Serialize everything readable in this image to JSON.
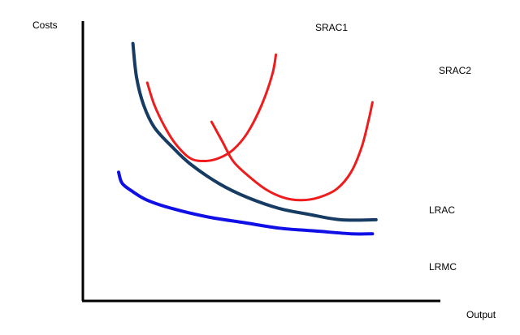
{
  "chart_data": {
    "type": "line",
    "ylabel": "Costs",
    "xlabel": "Output",
    "grid": false,
    "series": [
      {
        "name": "SRAC1",
        "color": "#ee1c1c",
        "points": [
          [
            0.18,
            0.78
          ],
          [
            0.2,
            0.7
          ],
          [
            0.23,
            0.62
          ],
          [
            0.26,
            0.56
          ],
          [
            0.3,
            0.51
          ],
          [
            0.34,
            0.5
          ],
          [
            0.38,
            0.51
          ],
          [
            0.42,
            0.54
          ],
          [
            0.46,
            0.6
          ],
          [
            0.5,
            0.7
          ],
          [
            0.53,
            0.81
          ],
          [
            0.54,
            0.88
          ]
        ]
      },
      {
        "name": "SRAC2",
        "color": "#ee1c1c",
        "points": [
          [
            0.36,
            0.64
          ],
          [
            0.39,
            0.57
          ],
          [
            0.42,
            0.5
          ],
          [
            0.46,
            0.45
          ],
          [
            0.51,
            0.4
          ],
          [
            0.56,
            0.37
          ],
          [
            0.61,
            0.36
          ],
          [
            0.66,
            0.37
          ],
          [
            0.71,
            0.4
          ],
          [
            0.75,
            0.46
          ],
          [
            0.78,
            0.55
          ],
          [
            0.8,
            0.65
          ],
          [
            0.81,
            0.71
          ]
        ]
      },
      {
        "name": "LRAC",
        "color": "#173c64",
        "points": [
          [
            0.14,
            0.92
          ],
          [
            0.15,
            0.8
          ],
          [
            0.17,
            0.7
          ],
          [
            0.2,
            0.62
          ],
          [
            0.25,
            0.55
          ],
          [
            0.3,
            0.49
          ],
          [
            0.38,
            0.42
          ],
          [
            0.46,
            0.37
          ],
          [
            0.55,
            0.33
          ],
          [
            0.63,
            0.31
          ],
          [
            0.72,
            0.29
          ],
          [
            0.82,
            0.29
          ]
        ]
      },
      {
        "name": "LRMC",
        "color": "#0f0fe6",
        "points": [
          [
            0.1,
            0.46
          ],
          [
            0.11,
            0.42
          ],
          [
            0.14,
            0.39
          ],
          [
            0.18,
            0.36
          ],
          [
            0.25,
            0.33
          ],
          [
            0.35,
            0.3
          ],
          [
            0.45,
            0.28
          ],
          [
            0.55,
            0.26
          ],
          [
            0.65,
            0.25
          ],
          [
            0.75,
            0.24
          ],
          [
            0.81,
            0.24
          ]
        ]
      }
    ]
  }
}
